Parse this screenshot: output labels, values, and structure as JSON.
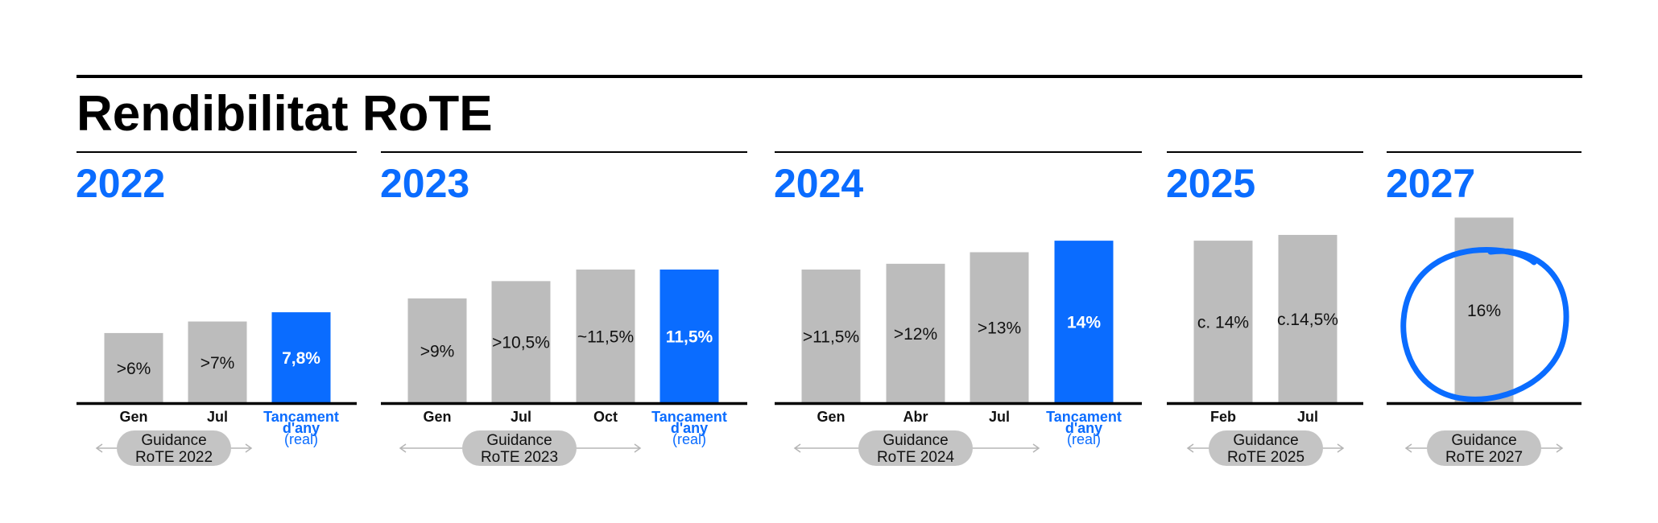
{
  "title": "Rendibilitat RoTE",
  "colors": {
    "bar": "#bcbcbc",
    "highlight": "#0a6cff",
    "axis": "#000000",
    "pill": "#c4c4c4",
    "arrow": "#b5b5b5"
  },
  "chart_data": [
    {
      "type": "bar",
      "year": "2022",
      "categories": [
        "Gen",
        "Jul",
        "Tancament d'any (real)"
      ],
      "values": [
        6,
        7,
        7.8
      ],
      "labels": [
        ">6%",
        ">7%",
        "7,8%"
      ],
      "highlight": [
        false,
        false,
        true
      ],
      "cat_lines": [
        [
          "Gen"
        ],
        [
          "Jul"
        ],
        [
          "Tancament",
          "d'any",
          "(real)"
        ]
      ],
      "pill": [
        "Guidance",
        "RoTE 2022"
      ]
    },
    {
      "type": "bar",
      "year": "2023",
      "categories": [
        "Gen",
        "Jul",
        "Oct",
        "Tancament d'any (real)"
      ],
      "values": [
        9,
        10.5,
        11.5,
        11.5
      ],
      "labels": [
        ">9%",
        ">10,5%",
        "~11,5%",
        "11,5%"
      ],
      "highlight": [
        false,
        false,
        false,
        true
      ],
      "cat_lines": [
        [
          "Gen"
        ],
        [
          "Jul"
        ],
        [
          "Oct"
        ],
        [
          "Tancament",
          "d'any",
          "(real)"
        ]
      ],
      "pill": [
        "Guidance",
        "RoTE 2023"
      ]
    },
    {
      "type": "bar",
      "year": "2024",
      "categories": [
        "Gen",
        "Abr",
        "Jul",
        "Tancament d'any (real)"
      ],
      "values": [
        11.5,
        12,
        13,
        14
      ],
      "labels": [
        ">11,5%",
        ">12%",
        ">13%",
        "14%"
      ],
      "highlight": [
        false,
        false,
        false,
        true
      ],
      "cat_lines": [
        [
          "Gen"
        ],
        [
          "Abr"
        ],
        [
          "Jul"
        ],
        [
          "Tancament",
          "d'any",
          "(real)"
        ]
      ],
      "pill": [
        "Guidance",
        "RoTE 2024"
      ]
    },
    {
      "type": "bar",
      "year": "2025",
      "categories": [
        "Feb",
        "Jul"
      ],
      "values": [
        14,
        14.5
      ],
      "labels": [
        "c. 14%",
        "c.14,5%"
      ],
      "highlight": [
        false,
        false
      ],
      "cat_lines": [
        [
          "Feb"
        ],
        [
          "Jul"
        ]
      ],
      "pill": [
        "Guidance",
        "RoTE 2025"
      ]
    },
    {
      "type": "bar",
      "year": "2027",
      "categories": [
        ""
      ],
      "values": [
        16
      ],
      "labels": [
        "16%"
      ],
      "highlight": [
        false
      ],
      "circled": true,
      "cat_lines": [
        []
      ],
      "pill": [
        "Guidance",
        "RoTE 2027"
      ]
    }
  ]
}
